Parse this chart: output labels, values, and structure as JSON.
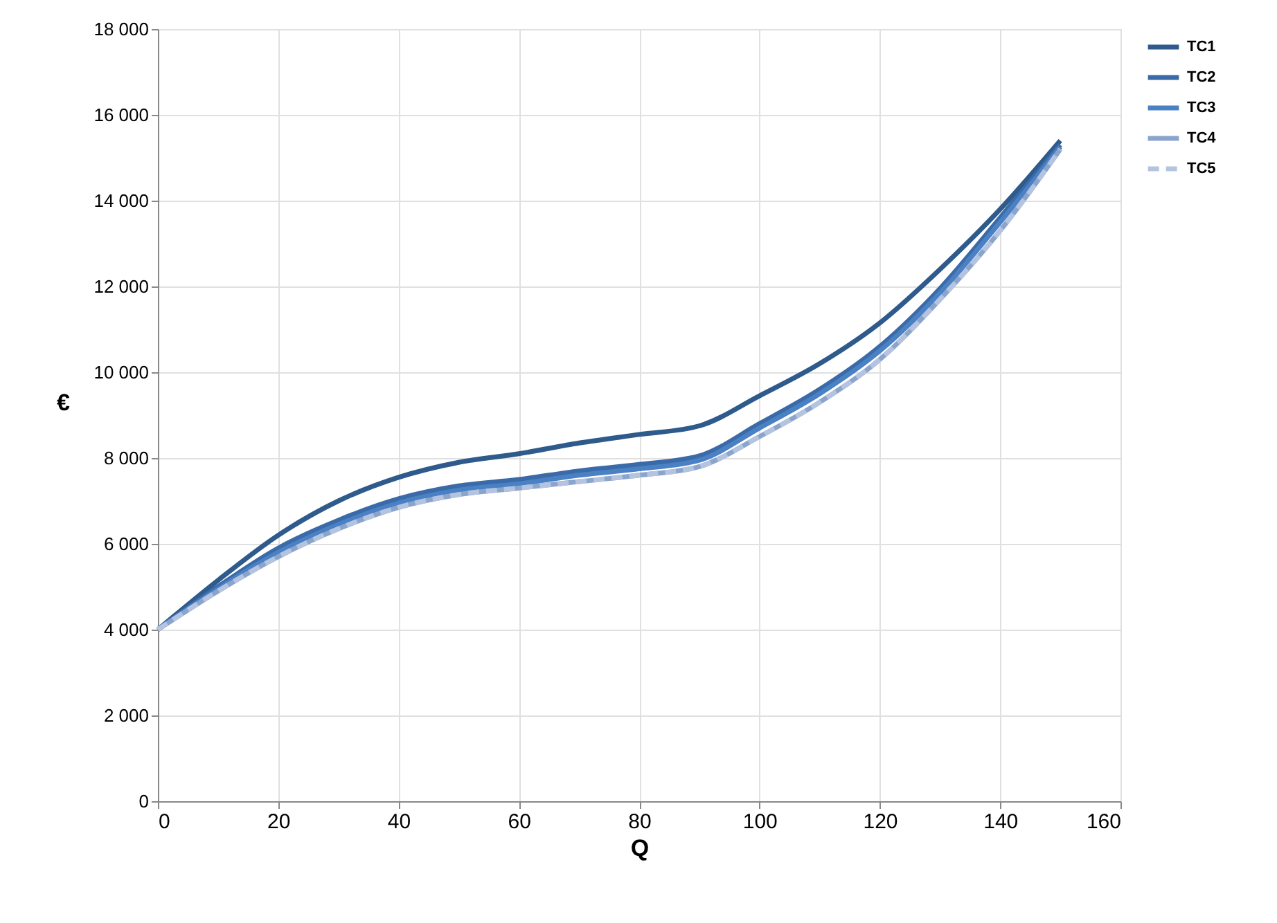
{
  "chart_data": {
    "type": "line",
    "xlabel": "Q",
    "ylabel": "€",
    "x": [
      0,
      10,
      20,
      30,
      40,
      50,
      60,
      70,
      80,
      90,
      100,
      110,
      120,
      130,
      140,
      150
    ],
    "series": [
      {
        "name": "TC1",
        "color": "#2e5a8c",
        "line_style": "solid",
        "values": [
          4000,
          5150,
          6200,
          7000,
          7550,
          7900,
          8100,
          8350,
          8550,
          8750,
          9450,
          10200,
          11150,
          12400,
          13800,
          15400
        ]
      },
      {
        "name": "TC2",
        "color": "#3a6aa8",
        "line_style": "solid",
        "values": [
          4000,
          5000,
          5900,
          6550,
          7050,
          7350,
          7500,
          7700,
          7850,
          8050,
          8800,
          9600,
          10600,
          11950,
          13600,
          15300
        ]
      },
      {
        "name": "TC3",
        "color": "#4a80c4",
        "line_style": "solid",
        "values": [
          4000,
          4950,
          5800,
          6450,
          6950,
          7250,
          7400,
          7600,
          7750,
          7950,
          8700,
          9500,
          10500,
          11850,
          13500,
          15250
        ]
      },
      {
        "name": "TC4",
        "color": "#8aa4cc",
        "line_style": "solid",
        "values": [
          4000,
          4900,
          5700,
          6350,
          6850,
          7150,
          7300,
          7450,
          7600,
          7800,
          8500,
          9300,
          10300,
          11700,
          13300,
          15200
        ]
      },
      {
        "name": "TC5",
        "color": "#b4c4e0",
        "line_style": "dashed",
        "values": [
          4000,
          4900,
          5700,
          6350,
          6850,
          7150,
          7300,
          7450,
          7600,
          7800,
          8500,
          9300,
          10300,
          11700,
          13300,
          15200
        ]
      }
    ],
    "xlim": [
      0,
      160
    ],
    "xticks": [
      0,
      20,
      40,
      60,
      80,
      100,
      120,
      140,
      160
    ],
    "ylim": [
      0,
      18000
    ],
    "yticks": [
      0,
      {
        "value": 2000,
        "label": "2 000"
      },
      {
        "value": 4000,
        "label": "4 000"
      },
      {
        "value": 6000,
        "label": "6 000"
      },
      {
        "value": 8000,
        "label": "8 000"
      },
      {
        "value": 10000,
        "label": "10 000"
      },
      {
        "value": 12000,
        "label": "12 000"
      },
      {
        "value": 14000,
        "label": "14 000"
      },
      {
        "value": 16000,
        "label": "16 000"
      },
      {
        "value": 18000,
        "label": "18 000"
      }
    ],
    "grid": true,
    "legend": "right"
  }
}
